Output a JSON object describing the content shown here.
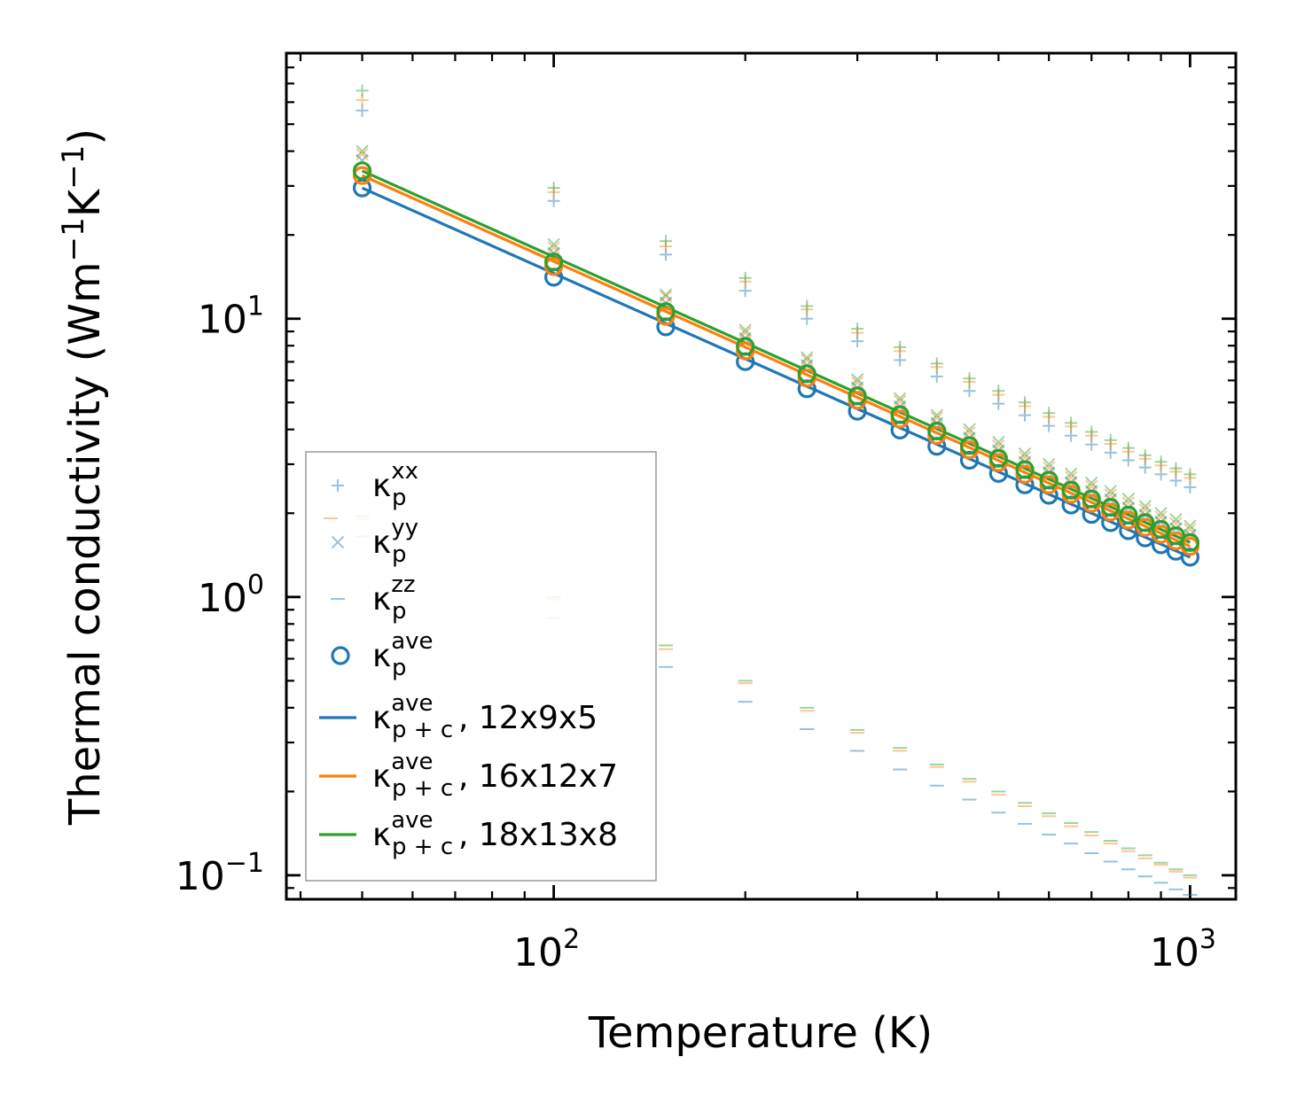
{
  "chart_data": {
    "type": "scatter",
    "scale": {
      "x": "log",
      "y": "log"
    },
    "xlabel": "Temperature (K)",
    "ylabel": "Thermal conductivity (Wm",
    "ylabel_unit_mid": "K",
    "ylabel_exp": "−1",
    "ylabel_close": ")",
    "xlim": [
      38,
      1180
    ],
    "ylim": [
      0.082,
      90
    ],
    "x_ticks": [
      {
        "value": 100,
        "base": "10",
        "exp": "2"
      },
      {
        "value": 1000,
        "base": "10",
        "exp": "3"
      }
    ],
    "y_ticks": [
      {
        "value": 0.1,
        "base": "10",
        "exp": "−1"
      },
      {
        "value": 1,
        "base": "10",
        "exp": "0"
      },
      {
        "value": 10,
        "base": "10",
        "exp": "1"
      }
    ],
    "temperatures": [
      50,
      100,
      150,
      200,
      250,
      300,
      350,
      400,
      450,
      500,
      550,
      600,
      650,
      700,
      750,
      800,
      850,
      900,
      950,
      1000
    ],
    "markers": [
      {
        "name": "kxx",
        "marker": "plus",
        "values": {
          "blue": [
            56,
            26.5,
            17,
            12.6,
            10,
            8.3,
            7.1,
            6.2,
            5.5,
            4.95,
            4.5,
            4.12,
            3.8,
            3.53,
            3.3,
            3.1,
            2.92,
            2.76,
            2.62,
            2.48
          ],
          "orange": [
            61,
            28.5,
            18.2,
            13.6,
            10.8,
            8.9,
            7.65,
            6.7,
            5.93,
            5.33,
            4.85,
            4.44,
            4.1,
            3.8,
            3.55,
            3.33,
            3.14,
            2.97,
            2.82,
            2.68
          ],
          "green": [
            66,
            29.5,
            19,
            14,
            11.1,
            9.2,
            7.9,
            6.9,
            6.1,
            5.5,
            5,
            4.58,
            4.22,
            3.92,
            3.66,
            3.43,
            3.23,
            3.06,
            2.9,
            2.76
          ]
        }
      },
      {
        "name": "kyy",
        "marker": "x",
        "values": {
          "blue": [
            37,
            17.2,
            11.4,
            8.5,
            6.8,
            5.65,
            4.83,
            4.21,
            3.73,
            3.36,
            3.05,
            2.8,
            2.58,
            2.4,
            2.24,
            2.09,
            1.97,
            1.86,
            1.76,
            1.67
          ],
          "orange": [
            39,
            18,
            12,
            8.9,
            7.1,
            5.9,
            5.05,
            4.4,
            3.9,
            3.5,
            3.18,
            2.92,
            2.69,
            2.5,
            2.33,
            2.18,
            2.06,
            1.94,
            1.84,
            1.75
          ],
          "green": [
            40,
            18.5,
            12.2,
            9.1,
            7.25,
            6.05,
            5.17,
            4.5,
            4,
            3.6,
            3.27,
            3,
            2.77,
            2.57,
            2.4,
            2.25,
            2.12,
            2,
            1.9,
            1.8
          ]
        }
      },
      {
        "name": "kzz",
        "marker": "dash",
        "values": {
          "blue": [
            1.65,
            0.84,
            0.56,
            0.42,
            0.335,
            0.28,
            0.24,
            0.21,
            0.187,
            0.168,
            0.153,
            0.14,
            0.13,
            0.12,
            0.112,
            0.105,
            0.099,
            0.094,
            0.089,
            0.085
          ],
          "orange": [
            1.9,
            0.98,
            0.65,
            0.49,
            0.39,
            0.325,
            0.28,
            0.245,
            0.217,
            0.195,
            0.177,
            0.163,
            0.15,
            0.139,
            0.13,
            0.122,
            0.115,
            0.109,
            0.103,
            0.098
          ],
          "green": [
            1.95,
            1.0,
            0.67,
            0.5,
            0.4,
            0.333,
            0.287,
            0.25,
            0.222,
            0.2,
            0.182,
            0.167,
            0.154,
            0.143,
            0.133,
            0.125,
            0.118,
            0.111,
            0.105,
            0.1
          ]
        }
      },
      {
        "name": "kave",
        "marker": "circle",
        "values": {
          "blue": [
            29.5,
            14.1,
            9.35,
            7.01,
            5.6,
            4.65,
            3.98,
            3.48,
            3.1,
            2.78,
            2.53,
            2.32,
            2.14,
            1.98,
            1.85,
            1.73,
            1.63,
            1.54,
            1.46,
            1.39
          ],
          "orange": [
            32.7,
            15.4,
            10.2,
            7.66,
            6.12,
            5.09,
            4.36,
            3.81,
            3.38,
            3.04,
            2.76,
            2.53,
            2.34,
            2.17,
            2.02,
            1.89,
            1.78,
            1.68,
            1.59,
            1.52
          ],
          "green": [
            34,
            16,
            10.6,
            7.95,
            6.34,
            5.28,
            4.52,
            3.95,
            3.5,
            3.15,
            2.87,
            2.63,
            2.42,
            2.25,
            2.1,
            1.97,
            1.85,
            1.75,
            1.66,
            1.57
          ]
        }
      }
    ],
    "lines": [
      {
        "name": "12x9x5",
        "color": "#1f77b4",
        "y_at_50": 29.5,
        "y_at_1000": 1.39
      },
      {
        "name": "16x12x7",
        "color": "#ff7f0e",
        "y_at_50": 32.7,
        "y_at_1000": 1.52
      },
      {
        "name": "18x13x8",
        "color": "#2ca02c",
        "y_at_50": 34,
        "y_at_1000": 1.57
      }
    ],
    "series_colors": {
      "blue": "#1f77b4",
      "orange": "#ff7f0e",
      "green": "#2ca02c"
    },
    "legend": {
      "position": "lower-left",
      "entries": [
        {
          "symbol": "κ",
          "sub": "p",
          "sup": "xx",
          "suffix": ""
        },
        {
          "symbol": "κ",
          "sub": "p",
          "sup": "yy",
          "suffix": ""
        },
        {
          "symbol": "κ",
          "sub": "p",
          "sup": "zz",
          "suffix": ""
        },
        {
          "symbol": "κ",
          "sub": "p",
          "sup": "ave",
          "suffix": ""
        },
        {
          "symbol": "κ",
          "sub": "p + c",
          "sup": "ave",
          "suffix": ", 12x9x5"
        },
        {
          "symbol": "κ",
          "sub": "p + c",
          "sup": "ave",
          "suffix": ", 16x12x7"
        },
        {
          "symbol": "κ",
          "sub": "p + c",
          "sup": "ave",
          "suffix": ", 18x13x8"
        }
      ]
    }
  }
}
